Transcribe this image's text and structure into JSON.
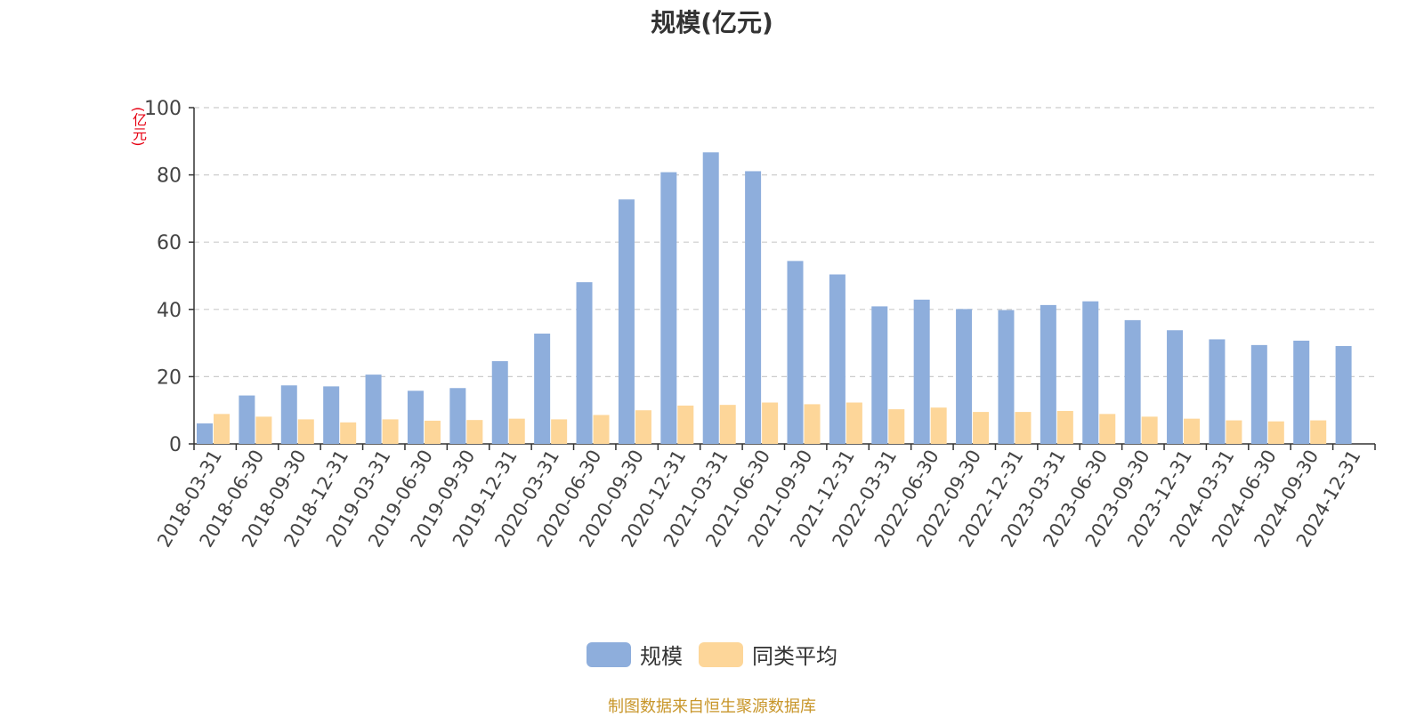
{
  "chart_data": {
    "type": "bar",
    "title": "规模(亿元)",
    "ylabel": "(亿元)",
    "xlabel": "",
    "ylim": [
      0,
      100
    ],
    "yticks": [
      0,
      20,
      40,
      60,
      80,
      100
    ],
    "grid": true,
    "legend_position": "bottom",
    "categories": [
      "2018-03-31",
      "2018-06-30",
      "2018-09-30",
      "2018-12-31",
      "2019-03-31",
      "2019-06-30",
      "2019-09-30",
      "2019-12-31",
      "2020-03-31",
      "2020-06-30",
      "2020-09-30",
      "2020-12-31",
      "2021-03-31",
      "2021-06-30",
      "2021-09-30",
      "2021-12-31",
      "2022-03-31",
      "2022-06-30",
      "2022-09-30",
      "2022-12-31",
      "2023-03-31",
      "2023-06-30",
      "2023-09-30",
      "2023-12-31",
      "2024-03-31",
      "2024-06-30",
      "2024-09-30",
      "2024-12-31"
    ],
    "series": [
      {
        "name": "规模",
        "color": "#8eaedc",
        "values": [
          6.1,
          14.4,
          17.4,
          17.1,
          20.6,
          15.8,
          16.6,
          24.6,
          32.8,
          48.1,
          72.7,
          80.8,
          86.7,
          81.1,
          54.4,
          50.4,
          40.9,
          42.9,
          40.1,
          39.8,
          41.3,
          42.4,
          36.8,
          33.8,
          31.1,
          29.4,
          30.7,
          29.1
        ]
      },
      {
        "name": "同类平均",
        "color": "#fdd699",
        "values": [
          8.9,
          8.1,
          7.3,
          6.4,
          7.3,
          6.9,
          7.1,
          7.5,
          7.3,
          8.6,
          10.0,
          11.4,
          11.6,
          12.3,
          11.8,
          12.3,
          10.3,
          10.8,
          9.5,
          9.5,
          9.8,
          8.9,
          8.1,
          7.5,
          7.0,
          6.7,
          7.0,
          null
        ]
      }
    ]
  },
  "footer": {
    "source": "制图数据来自恒生聚源数据库"
  }
}
